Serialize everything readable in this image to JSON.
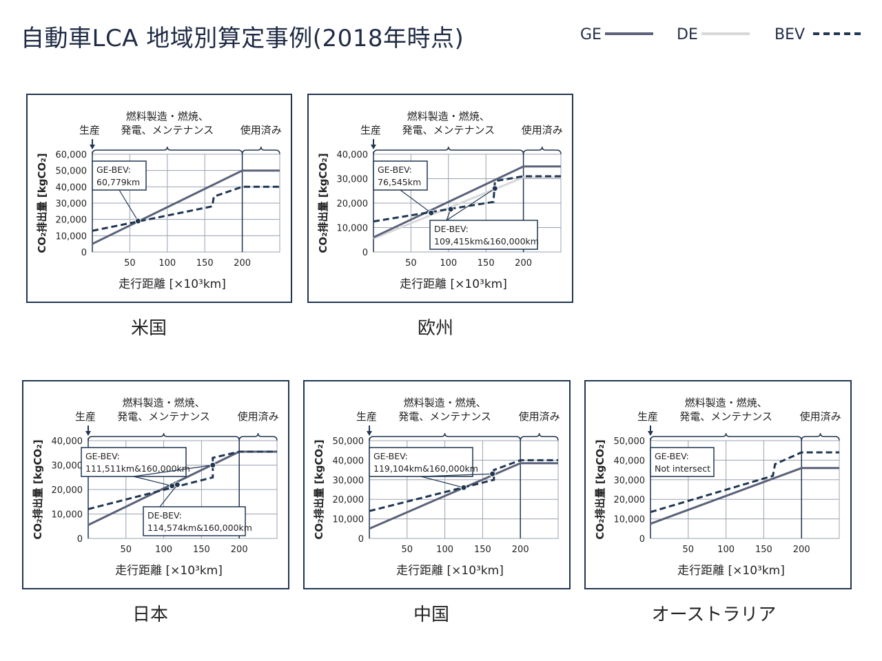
{
  "title": "自動車LCA 地域別算定事例(2018年時点)",
  "legend": [
    {
      "label": "GE",
      "color": "#5a6178",
      "style": "solid"
    },
    {
      "label": "DE",
      "color": "#d8d8d8",
      "style": "solid"
    },
    {
      "label": "BEV",
      "color": "#1f3550",
      "style": "dashed"
    }
  ],
  "common": {
    "phase_production": "生産",
    "phase_fuel_line1": "燃料製造・燃焼、",
    "phase_fuel_line2": "発電、メンテナンス",
    "phase_eol": "使用済み",
    "ylabel": "CO₂排出量 [kgCO₂]",
    "xlabel": "走行距離 [×10³km]"
  },
  "chart_data": [
    {
      "region": "米国",
      "type": "line",
      "xlim": [
        0,
        250
      ],
      "ylim": [
        0,
        60000
      ],
      "xticks": [
        "50",
        "100",
        "150",
        "200"
      ],
      "yticks": [
        "0",
        "10,000",
        "20,000",
        "30,000",
        "40,000",
        "50,000",
        "60,000"
      ],
      "series": [
        {
          "name": "GE",
          "points": [
            [
              0,
              5000
            ],
            [
              200,
              50000
            ],
            [
              250,
              50000
            ]
          ]
        },
        {
          "name": "BEV",
          "points": [
            [
              0,
              13000
            ],
            [
              160,
              28000
            ],
            [
              162,
              34000
            ],
            [
              200,
              40000
            ],
            [
              250,
              40000
            ]
          ]
        }
      ],
      "intersections": [
        [
          61,
          19000
        ]
      ],
      "annotations": [
        {
          "text_line1": "GE-BEV:",
          "text_line2": "60,779km"
        }
      ]
    },
    {
      "region": "欧州",
      "type": "line",
      "xlim": [
        0,
        250
      ],
      "ylim": [
        0,
        40000
      ],
      "xticks": [
        "50",
        "100",
        "150",
        "200"
      ],
      "yticks": [
        "0",
        "10,000",
        "20,000",
        "30,000",
        "40,000"
      ],
      "series": [
        {
          "name": "GE",
          "points": [
            [
              0,
              6000
            ],
            [
              200,
              35000
            ],
            [
              250,
              35000
            ]
          ]
        },
        {
          "name": "DE",
          "points": [
            [
              0,
              5500
            ],
            [
              200,
              30500
            ],
            [
              250,
              30500
            ]
          ]
        },
        {
          "name": "BEV",
          "points": [
            [
              0,
              12500
            ],
            [
              160,
              20500
            ],
            [
              162,
              29000
            ],
            [
              200,
              31000
            ],
            [
              250,
              31000
            ]
          ]
        }
      ],
      "intersections": [
        [
          77,
          16000
        ],
        [
          103,
          17500
        ],
        [
          162,
          26000
        ]
      ],
      "annotations": [
        {
          "text_line1": "GE-BEV:",
          "text_line2": "76,545km"
        },
        {
          "text_line1": "DE-BEV:",
          "text_line2": "109,415km&160,000km"
        }
      ]
    },
    {
      "region": "日本",
      "type": "line",
      "xlim": [
        0,
        250
      ],
      "ylim": [
        0,
        40000
      ],
      "xticks": [
        "50",
        "100",
        "150",
        "200"
      ],
      "yticks": [
        "0",
        "10,000",
        "20,000",
        "30,000",
        "40,000"
      ],
      "series": [
        {
          "name": "GE",
          "points": [
            [
              0,
              5500
            ],
            [
              200,
              35500
            ],
            [
              250,
              35500
            ]
          ]
        },
        {
          "name": "DE",
          "points": [
            [
              0,
              5500
            ],
            [
              200,
              35500
            ],
            [
              250,
              35500
            ]
          ]
        },
        {
          "name": "BEV",
          "points": [
            [
              0,
              12000
            ],
            [
              165,
              25000
            ],
            [
              165,
              33000
            ],
            [
              200,
              35500
            ],
            [
              250,
              35500
            ]
          ]
        }
      ],
      "intersections": [
        [
          111,
          21500
        ],
        [
          118,
          22000
        ],
        [
          165,
          30000
        ]
      ],
      "annotations": [
        {
          "text_line1": "GE-BEV:",
          "text_line2": "111,511km&160,000km"
        },
        {
          "text_line1": "DE-BEV:",
          "text_line2": "114,574km&160,000km"
        }
      ]
    },
    {
      "region": "中国",
      "type": "line",
      "xlim": [
        0,
        250
      ],
      "ylim": [
        0,
        50000
      ],
      "xticks": [
        "50",
        "100",
        "150",
        "200"
      ],
      "yticks": [
        "0",
        "10,000",
        "20,000",
        "30,000",
        "40,000",
        "50,000"
      ],
      "series": [
        {
          "name": "GE",
          "points": [
            [
              0,
              5000
            ],
            [
              200,
              38500
            ],
            [
              250,
              38500
            ]
          ]
        },
        {
          "name": "BEV",
          "points": [
            [
              0,
              14000
            ],
            [
              165,
              30000
            ],
            [
              165,
              35000
            ],
            [
              200,
              40000
            ],
            [
              250,
              40000
            ]
          ]
        }
      ],
      "intersections": [
        [
          125,
          26000
        ],
        [
          163,
          33000
        ]
      ],
      "annotations": [
        {
          "text_line1": "GE-BEV:",
          "text_line2": "119,104km&160,000km"
        }
      ]
    },
    {
      "region": "オーストラリア",
      "type": "line",
      "xlim": [
        0,
        250
      ],
      "ylim": [
        0,
        50000
      ],
      "xticks": [
        "50",
        "100",
        "150",
        "200"
      ],
      "yticks": [
        "0",
        "10,000",
        "20,000",
        "30,000",
        "40,000",
        "50,000"
      ],
      "series": [
        {
          "name": "GE",
          "points": [
            [
              0,
              7500
            ],
            [
              200,
              36000
            ],
            [
              250,
              36000
            ]
          ]
        },
        {
          "name": "BEV",
          "points": [
            [
              0,
              13500
            ],
            [
              162,
              32000
            ],
            [
              165,
              38000
            ],
            [
              200,
              44000
            ],
            [
              250,
              44000
            ]
          ]
        }
      ],
      "intersections": [],
      "annotations": [
        {
          "text_line1": "GE-BEV:",
          "text_line2": "Not intersect"
        }
      ]
    }
  ]
}
